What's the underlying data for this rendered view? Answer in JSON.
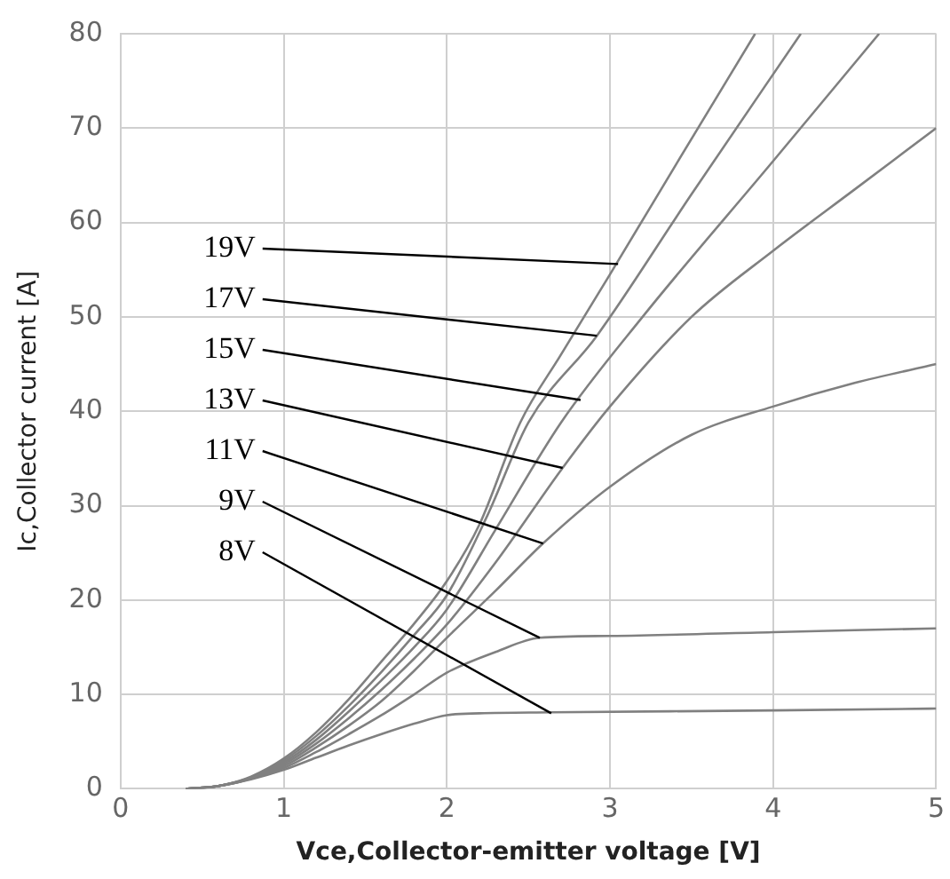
{
  "chart_data": {
    "type": "line",
    "xlabel": "Vce,Collector-emitter voltage [V]",
    "ylabel": "Ic,Collector current [A]",
    "xlim": [
      0,
      5
    ],
    "xticks": [
      0,
      1,
      2,
      3,
      4,
      5
    ],
    "ylim": [
      0,
      80
    ],
    "yticks": [
      0,
      10,
      20,
      30,
      40,
      50,
      60,
      70,
      80
    ],
    "grid": true,
    "marker": "none",
    "line_style": "solid",
    "legend": false,
    "series": [
      {
        "color": "#808080",
        "x": [
          0.4,
          0.6,
          0.8,
          1.0,
          1.2,
          1.4,
          1.6,
          1.8,
          2.0,
          2.2,
          2.45,
          2.7,
          3.0,
          3.4,
          3.89
        ],
        "values": [
          0,
          0.3,
          1.3,
          3.2,
          6,
          9.5,
          13.5,
          17.5,
          22,
          28,
          38.8,
          46,
          54.5,
          66,
          80
        ]
      },
      {
        "color": "#808080",
        "x": [
          0.4,
          0.6,
          0.8,
          1.0,
          1.2,
          1.4,
          1.6,
          1.8,
          2.0,
          2.25,
          2.5,
          2.92,
          3.5,
          4.17
        ],
        "values": [
          0,
          0.3,
          1.2,
          3,
          5.6,
          8.8,
          12.4,
          16.3,
          20.5,
          29,
          38.8,
          48,
          63,
          80
        ]
      },
      {
        "color": "#808080",
        "x": [
          0.4,
          0.6,
          0.8,
          1.0,
          1.2,
          1.4,
          1.6,
          1.8,
          2.0,
          2.3,
          2.7,
          3.2,
          4.0,
          4.65
        ],
        "values": [
          0,
          0.3,
          1.2,
          2.8,
          5.2,
          8.2,
          11.5,
          15,
          19,
          27.5,
          38.8,
          50,
          66.5,
          80
        ]
      },
      {
        "color": "#808080",
        "x": [
          0.4,
          0.6,
          0.8,
          1.0,
          1.2,
          1.4,
          1.6,
          1.8,
          2.0,
          2.3,
          2.71,
          3.0,
          3.5,
          4.0,
          4.5,
          5.0
        ],
        "values": [
          0,
          0.3,
          1.1,
          2.6,
          4.8,
          7.5,
          10.5,
          13.8,
          17.4,
          24,
          34,
          40.5,
          50,
          57,
          63.5,
          70
        ]
      },
      {
        "color": "#808080",
        "x": [
          0.4,
          0.6,
          0.8,
          1.0,
          1.2,
          1.4,
          1.6,
          1.8,
          2.0,
          2.3,
          2.59,
          3.0,
          3.5,
          4.0,
          4.5,
          5.0
        ],
        "values": [
          0,
          0.3,
          1.1,
          2.4,
          4.4,
          6.7,
          9.3,
          12.5,
          16,
          21,
          26,
          32,
          37.5,
          40.5,
          43,
          45
        ]
      },
      {
        "color": "#808080",
        "x": [
          0.4,
          0.6,
          0.8,
          1.0,
          1.2,
          1.4,
          1.6,
          1.8,
          2.0,
          2.3,
          2.57,
          3.0,
          4.0,
          5.0
        ],
        "values": [
          0,
          0.3,
          1.1,
          2.2,
          3.9,
          5.8,
          7.8,
          10,
          12.3,
          14.5,
          16,
          16.2,
          16.6,
          17
        ]
      },
      {
        "color": "#808080",
        "x": [
          0.4,
          0.6,
          0.8,
          1.0,
          1.2,
          1.4,
          1.6,
          1.8,
          2.0,
          2.2,
          2.64,
          4.0,
          5.0
        ],
        "values": [
          0,
          0.3,
          1.0,
          2.0,
          3.3,
          4.6,
          5.8,
          6.9,
          7.8,
          8,
          8.1,
          8.3,
          8.5
        ]
      }
    ],
    "annotations": [
      {
        "text": "19V",
        "x": 3.05,
        "y": 55.6
      },
      {
        "text": "17V",
        "x": 2.92,
        "y": 48
      },
      {
        "text": "15V",
        "x": 2.82,
        "y": 41.2
      },
      {
        "text": "13V",
        "x": 2.71,
        "y": 34
      },
      {
        "text": "11V",
        "x": 2.59,
        "y": 26
      },
      {
        "text": "9V",
        "x": 2.57,
        "y": 16
      },
      {
        "text": "8V",
        "x": 2.64,
        "y": 8
      }
    ]
  }
}
